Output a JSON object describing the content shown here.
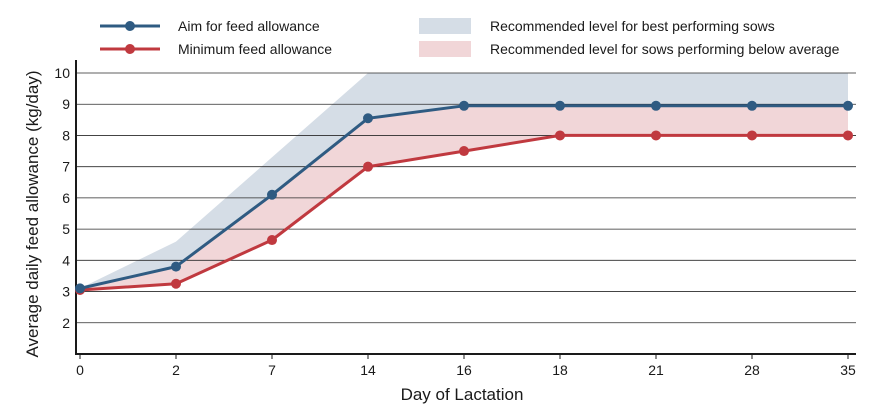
{
  "chart_data": {
    "type": "line",
    "xlabel": "Day of Lactation",
    "ylabel": "Average daily feed allowance (kg/day)",
    "categories": [
      "0",
      "2",
      "7",
      "14",
      "16",
      "18",
      "21",
      "28",
      "35"
    ],
    "ylim": [
      1,
      10
    ],
    "yticks": [
      2,
      3,
      4,
      5,
      6,
      7,
      8,
      9,
      10
    ],
    "grid": true,
    "legend_placement": "top",
    "series": [
      {
        "name": "Aim for feed allowance",
        "color": "#2f5b82",
        "values": [
          3.1,
          3.8,
          6.1,
          8.55,
          8.95,
          8.95,
          8.95,
          8.95,
          8.95
        ]
      },
      {
        "name": "Minimum feed allowance",
        "color": "#c0393f",
        "values": [
          3.05,
          3.25,
          4.65,
          7.0,
          7.5,
          8.0,
          8.0,
          8.0,
          8.0
        ]
      }
    ],
    "bands": [
      {
        "name": "Recommended level for best performing sows",
        "color": "#d5dde6",
        "upper": [
          3.1,
          4.6,
          7.3,
          10.0,
          10.0,
          10.0,
          10.0,
          10.0,
          10.0
        ]
      },
      {
        "name": "Recommended level for sows performing below average",
        "color": "#f1d6d8",
        "upper": [
          3.1,
          3.8,
          6.1,
          8.55,
          8.95,
          8.95,
          8.95,
          8.95,
          8.95
        ]
      }
    ]
  }
}
